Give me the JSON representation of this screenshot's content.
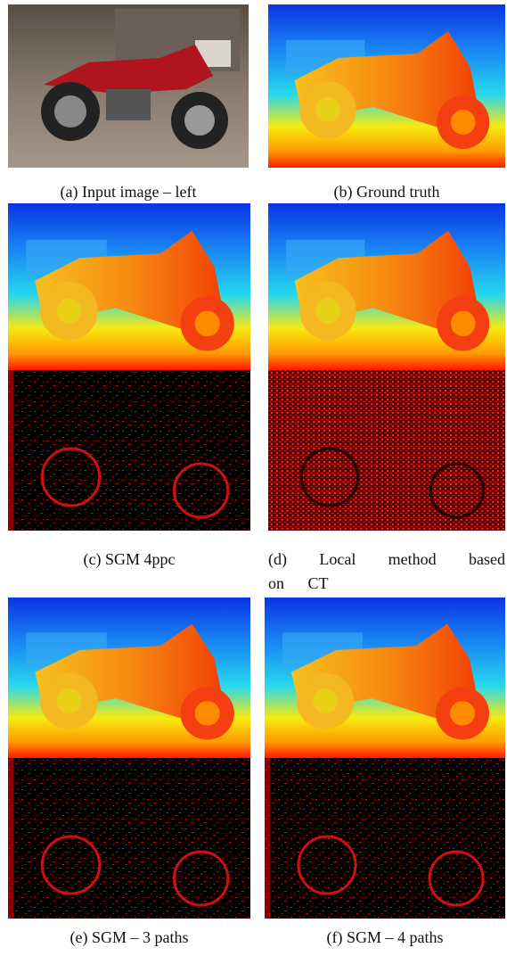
{
  "figure": {
    "panels": [
      {
        "caption": "(a) Input image – left"
      },
      {
        "caption": "(b) Ground truth"
      },
      {
        "caption": "(c) SGM 4ppc"
      },
      {
        "caption": "(d) Local method based on CT"
      },
      {
        "caption": "(e) SGM – 3 paths"
      },
      {
        "caption": "(f) SGM – 4 paths"
      }
    ]
  }
}
